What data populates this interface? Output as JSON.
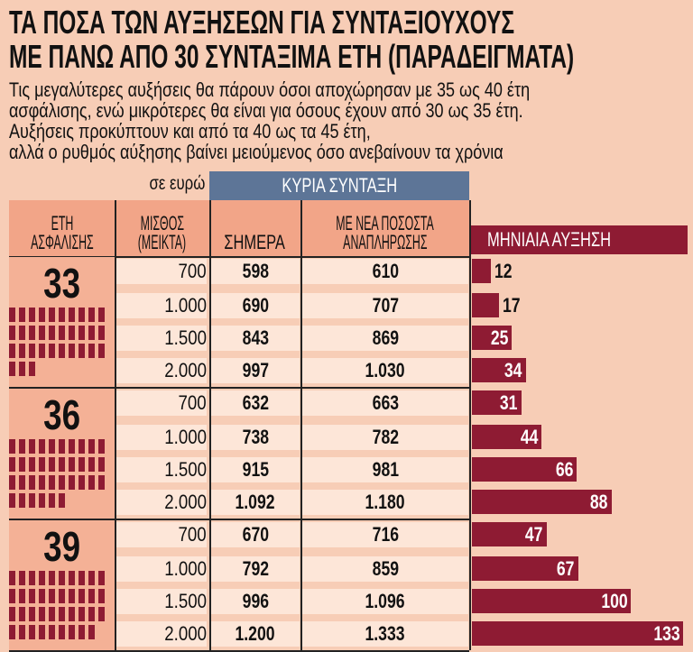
{
  "title": [
    "ΤΑ ΠΟΣΑ ΤΩΝ ΑΥΞΗΣΕΩΝ ΓΙΑ ΣΥΝΤΑΞΙΟΥΧΟΥΣ",
    "ΜΕ ΠΑΝΩ ΑΠΟ 30 ΣΥΝΤΑΞΙΜΑ ΕΤΗ (ΠΑΡΑΔΕΙΓΜΑΤΑ)"
  ],
  "subtitle": [
    "Τις μεγαλύτερες αυξήσεις θα πάρουν όσοι αποχώρησαν με 35 ως 40 έτη",
    "ασφάλισης, ενώ μικρότερες θα είναι για όσους έχουν από 30 ως 35 έτη.",
    "Αυξήσεις προκύπτουν και από τα 40 ως τα 45 έτη,",
    "αλλά ο ρυθμός αύξησης βαίνει μειούμενος όσο ανεβαίνουν τα χρόνια"
  ],
  "table": {
    "unit_note": "σε ευρώ",
    "group_header": "ΚΥΡΙΑ ΣΥΝΤΑΞΗ",
    "headers": {
      "years": [
        "ΕΤΗ",
        "ΑΣΦΑΛΙΣΗΣ"
      ],
      "salary": [
        "ΜΙΣΘΟΣ",
        "(ΜΕΙΚΤΑ)"
      ],
      "today": [
        "ΣΗΜΕΡΑ"
      ],
      "new_rates": [
        "ΜΕ ΝΕΑ ΠΟΣΟΣΤΑ",
        "ΑΝΑΠΛΗΡΩΣΗΣ"
      ],
      "increase": [
        "ΜΗΝΙΑΙΑ ΑΥΞΗΣΗ"
      ]
    }
  },
  "colors": {
    "background": "#f7cdb6",
    "header_cell": "#f2a588",
    "group_header": "#5d7597",
    "bar": "#8e1b33",
    "cell": "#fde6d8"
  },
  "chart_data": {
    "type": "bar",
    "orientation": "horizontal",
    "groups": [
      {
        "years": "33",
        "blocks": 33,
        "rows": [
          {
            "salary": "700",
            "today": "598",
            "new": "610",
            "increase": 12
          },
          {
            "salary": "1.000",
            "today": "690",
            "new": "707",
            "increase": 17
          },
          {
            "salary": "1.500",
            "today": "843",
            "new": "869",
            "increase": 25
          },
          {
            "salary": "2.000",
            "today": "997",
            "new": "1.030",
            "increase": 34
          }
        ]
      },
      {
        "years": "36",
        "blocks": 36,
        "rows": [
          {
            "salary": "700",
            "today": "632",
            "new": "663",
            "increase": 31
          },
          {
            "salary": "1.000",
            "today": "738",
            "new": "782",
            "increase": 44
          },
          {
            "salary": "1.500",
            "today": "915",
            "new": "981",
            "increase": 66
          },
          {
            "salary": "2.000",
            "today": "1.092",
            "new": "1.180",
            "increase": 88
          }
        ]
      },
      {
        "years": "39",
        "blocks": 39,
        "rows": [
          {
            "salary": "700",
            "today": "670",
            "new": "716",
            "increase": 47
          },
          {
            "salary": "1.000",
            "today": "792",
            "new": "859",
            "increase": 67
          },
          {
            "salary": "1.500",
            "today": "996",
            "new": "1.096",
            "increase": 100
          },
          {
            "salary": "2.000",
            "today": "1.200",
            "new": "1.333",
            "increase": 133
          }
        ]
      }
    ]
  }
}
